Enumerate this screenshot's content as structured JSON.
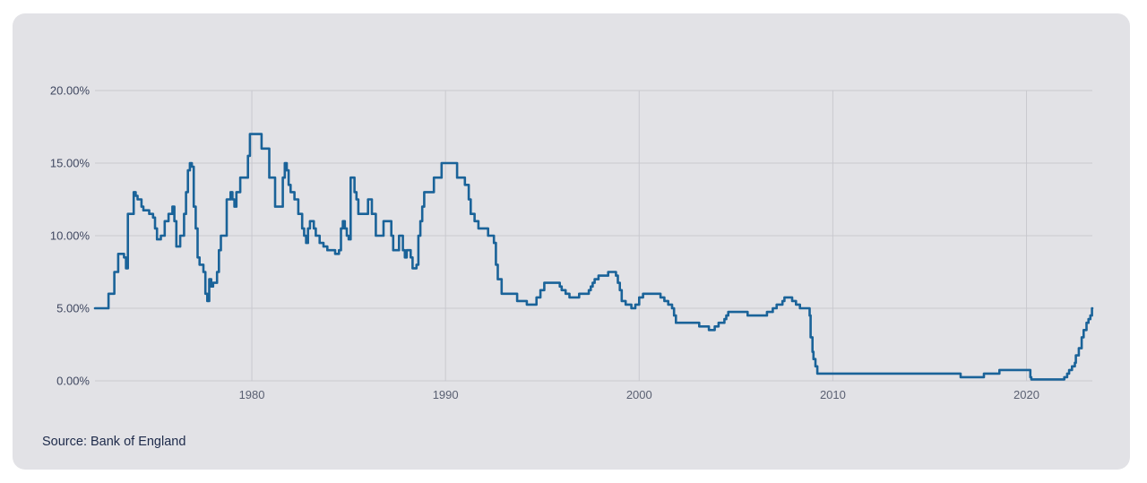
{
  "source_label": "Source: Bank of England",
  "chart_data": {
    "type": "line",
    "ylabel": "",
    "xlabel": "",
    "ylim": [
      0,
      20
    ],
    "xlim": [
      1971.9,
      2023.4
    ],
    "grid": true,
    "y_ticks": [
      {
        "value": 20,
        "label": "20.00%"
      },
      {
        "value": 15,
        "label": "15.00%"
      },
      {
        "value": 10,
        "label": "10.00%"
      },
      {
        "value": 5,
        "label": "5.00%"
      },
      {
        "value": 0,
        "label": "0.00%"
      }
    ],
    "x_ticks": [
      {
        "value": 1980,
        "label": "1980"
      },
      {
        "value": 1990,
        "label": "1990"
      },
      {
        "value": 2000,
        "label": "2000"
      },
      {
        "value": 2010,
        "label": "2010"
      },
      {
        "value": 2020,
        "label": "2020"
      }
    ],
    "line_color": "#1a6399",
    "series": [
      {
        "step": true,
        "points": [
          [
            1971.9,
            5.0
          ],
          [
            1972.6,
            6.0
          ],
          [
            1972.9,
            7.5
          ],
          [
            1973.1,
            8.75
          ],
          [
            1973.4,
            8.5
          ],
          [
            1973.5,
            7.75
          ],
          [
            1973.6,
            11.5
          ],
          [
            1973.9,
            13.0
          ],
          [
            1974.0,
            12.75
          ],
          [
            1974.1,
            12.5
          ],
          [
            1974.3,
            12.0
          ],
          [
            1974.4,
            11.75
          ],
          [
            1974.7,
            11.5
          ],
          [
            1974.9,
            11.25
          ],
          [
            1975.0,
            10.5
          ],
          [
            1975.1,
            9.75
          ],
          [
            1975.3,
            10.0
          ],
          [
            1975.5,
            11.0
          ],
          [
            1975.7,
            11.5
          ],
          [
            1975.9,
            12.0
          ],
          [
            1976.0,
            11.0
          ],
          [
            1976.1,
            9.25
          ],
          [
            1976.3,
            10.0
          ],
          [
            1976.5,
            11.5
          ],
          [
            1976.6,
            13.0
          ],
          [
            1976.7,
            14.5
          ],
          [
            1976.8,
            15.0
          ],
          [
            1976.9,
            14.75
          ],
          [
            1977.0,
            12.0
          ],
          [
            1977.1,
            10.5
          ],
          [
            1977.2,
            8.5
          ],
          [
            1977.3,
            8.0
          ],
          [
            1977.5,
            7.5
          ],
          [
            1977.6,
            6.0
          ],
          [
            1977.7,
            5.5
          ],
          [
            1977.8,
            7.0
          ],
          [
            1977.9,
            6.5
          ],
          [
            1978.0,
            6.75
          ],
          [
            1978.2,
            7.5
          ],
          [
            1978.3,
            9.0
          ],
          [
            1978.4,
            10.0
          ],
          [
            1978.7,
            12.5
          ],
          [
            1978.9,
            13.0
          ],
          [
            1979.0,
            12.5
          ],
          [
            1979.1,
            12.0
          ],
          [
            1979.2,
            13.0
          ],
          [
            1979.4,
            14.0
          ],
          [
            1979.8,
            15.5
          ],
          [
            1979.9,
            17.0
          ],
          [
            1980.5,
            16.0
          ],
          [
            1980.9,
            14.0
          ],
          [
            1981.2,
            12.0
          ],
          [
            1981.6,
            14.0
          ],
          [
            1981.7,
            15.0
          ],
          [
            1981.8,
            14.5
          ],
          [
            1981.9,
            13.5
          ],
          [
            1982.0,
            13.0
          ],
          [
            1982.2,
            12.5
          ],
          [
            1982.4,
            11.5
          ],
          [
            1982.6,
            10.5
          ],
          [
            1982.7,
            10.0
          ],
          [
            1982.8,
            9.5
          ],
          [
            1982.9,
            10.5
          ],
          [
            1983.0,
            11.0
          ],
          [
            1983.2,
            10.5
          ],
          [
            1983.3,
            10.0
          ],
          [
            1983.5,
            9.5
          ],
          [
            1983.7,
            9.25
          ],
          [
            1983.9,
            9.0
          ],
          [
            1984.3,
            8.75
          ],
          [
            1984.5,
            9.0
          ],
          [
            1984.6,
            10.5
          ],
          [
            1984.7,
            11.0
          ],
          [
            1984.8,
            10.5
          ],
          [
            1984.9,
            10.0
          ],
          [
            1985.0,
            9.75
          ],
          [
            1985.1,
            14.0
          ],
          [
            1985.3,
            13.0
          ],
          [
            1985.4,
            12.5
          ],
          [
            1985.5,
            11.5
          ],
          [
            1986.0,
            12.5
          ],
          [
            1986.2,
            11.5
          ],
          [
            1986.4,
            10.0
          ],
          [
            1986.8,
            11.0
          ],
          [
            1987.2,
            10.0
          ],
          [
            1987.3,
            9.0
          ],
          [
            1987.5,
            9.0
          ],
          [
            1987.6,
            10.0
          ],
          [
            1987.8,
            9.0
          ],
          [
            1987.9,
            8.5
          ],
          [
            1988.0,
            9.0
          ],
          [
            1988.2,
            8.5
          ],
          [
            1988.3,
            7.75
          ],
          [
            1988.5,
            8.0
          ],
          [
            1988.6,
            10.0
          ],
          [
            1988.7,
            11.0
          ],
          [
            1988.8,
            12.0
          ],
          [
            1988.9,
            13.0
          ],
          [
            1989.4,
            14.0
          ],
          [
            1989.8,
            15.0
          ],
          [
            1990.6,
            14.0
          ],
          [
            1991.0,
            13.5
          ],
          [
            1991.2,
            12.5
          ],
          [
            1991.3,
            11.5
          ],
          [
            1991.5,
            11.0
          ],
          [
            1991.7,
            10.5
          ],
          [
            1992.2,
            10.0
          ],
          [
            1992.5,
            9.5
          ],
          [
            1992.6,
            8.0
          ],
          [
            1992.7,
            7.0
          ],
          [
            1992.9,
            6.0
          ],
          [
            1993.7,
            5.5
          ],
          [
            1994.2,
            5.25
          ],
          [
            1994.7,
            5.75
          ],
          [
            1994.9,
            6.25
          ],
          [
            1995.1,
            6.75
          ],
          [
            1995.9,
            6.5
          ],
          [
            1996.0,
            6.25
          ],
          [
            1996.2,
            6.0
          ],
          [
            1996.4,
            5.75
          ],
          [
            1996.9,
            6.0
          ],
          [
            1997.4,
            6.25
          ],
          [
            1997.5,
            6.5
          ],
          [
            1997.6,
            6.75
          ],
          [
            1997.7,
            7.0
          ],
          [
            1997.9,
            7.25
          ],
          [
            1998.4,
            7.5
          ],
          [
            1998.8,
            7.25
          ],
          [
            1998.9,
            6.75
          ],
          [
            1999.0,
            6.25
          ],
          [
            1999.1,
            5.5
          ],
          [
            1999.3,
            5.25
          ],
          [
            1999.6,
            5.0
          ],
          [
            1999.8,
            5.25
          ],
          [
            2000.0,
            5.75
          ],
          [
            2000.2,
            6.0
          ],
          [
            2001.1,
            5.75
          ],
          [
            2001.3,
            5.5
          ],
          [
            2001.5,
            5.25
          ],
          [
            2001.7,
            5.0
          ],
          [
            2001.8,
            4.5
          ],
          [
            2001.9,
            4.0
          ],
          [
            2003.1,
            3.75
          ],
          [
            2003.6,
            3.5
          ],
          [
            2003.9,
            3.75
          ],
          [
            2004.1,
            4.0
          ],
          [
            2004.4,
            4.25
          ],
          [
            2004.5,
            4.5
          ],
          [
            2004.6,
            4.75
          ],
          [
            2005.6,
            4.5
          ],
          [
            2006.6,
            4.75
          ],
          [
            2006.9,
            5.0
          ],
          [
            2007.1,
            5.25
          ],
          [
            2007.4,
            5.5
          ],
          [
            2007.5,
            5.75
          ],
          [
            2007.9,
            5.5
          ],
          [
            2008.1,
            5.25
          ],
          [
            2008.3,
            5.0
          ],
          [
            2008.8,
            4.5
          ],
          [
            2008.85,
            3.0
          ],
          [
            2008.95,
            2.0
          ],
          [
            2009.0,
            1.5
          ],
          [
            2009.1,
            1.0
          ],
          [
            2009.2,
            0.5
          ],
          [
            2016.6,
            0.25
          ],
          [
            2017.8,
            0.5
          ],
          [
            2018.6,
            0.75
          ],
          [
            2020.2,
            0.25
          ],
          [
            2020.25,
            0.1
          ],
          [
            2021.95,
            0.25
          ],
          [
            2022.1,
            0.5
          ],
          [
            2022.2,
            0.75
          ],
          [
            2022.35,
            1.0
          ],
          [
            2022.5,
            1.25
          ],
          [
            2022.55,
            1.75
          ],
          [
            2022.7,
            2.25
          ],
          [
            2022.85,
            3.0
          ],
          [
            2022.95,
            3.5
          ],
          [
            2023.1,
            4.0
          ],
          [
            2023.2,
            4.25
          ],
          [
            2023.3,
            4.5
          ],
          [
            2023.38,
            5.0
          ],
          [
            2023.4,
            5.0
          ]
        ]
      }
    ]
  }
}
